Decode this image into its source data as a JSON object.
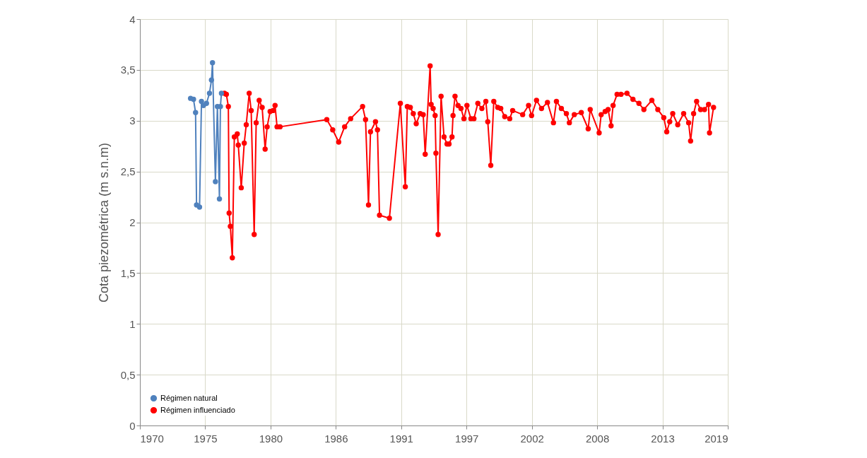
{
  "chart_data": {
    "type": "line",
    "ylabel": "Cota piezométrica (m s.n.m)",
    "xlim": [
      "1970-01-01",
      "2019-04-14"
    ],
    "xticks": [
      {
        "value": "1970-01-01",
        "label": "1970"
      },
      {
        "value": "1975-06-24",
        "label": "1975"
      },
      {
        "value": "1980-12-14",
        "label": "1980"
      },
      {
        "value": "1986-06-06",
        "label": "1986"
      },
      {
        "value": "1991-11-27",
        "label": "1991"
      },
      {
        "value": "1997-05-19",
        "label": "1997"
      },
      {
        "value": "2002-11-09",
        "label": "2002"
      },
      {
        "value": "2008-05-01",
        "label": "2008"
      },
      {
        "value": "2013-10-22",
        "label": "2013"
      },
      {
        "value": "2019-04-14",
        "label": "2019"
      }
    ],
    "ylim": [
      0,
      4
    ],
    "yticks": [
      {
        "value": 0,
        "label": "0"
      },
      {
        "value": 0.5,
        "label": "0,5"
      },
      {
        "value": 1,
        "label": "1"
      },
      {
        "value": 1.5,
        "label": "1,5"
      },
      {
        "value": 2,
        "label": "2"
      },
      {
        "value": 2.5,
        "label": "2,5"
      },
      {
        "value": 3,
        "label": "3"
      },
      {
        "value": 3.5,
        "label": "3,5"
      },
      {
        "value": 4,
        "label": "4"
      }
    ],
    "grid": true,
    "legend": "bottom left",
    "marker": "circle",
    "line_style": "solid",
    "series": [
      {
        "name": "Régimen natural",
        "color": "#4f81bd",
        "x": [
          "1974-04",
          "1974-07",
          "1974-09",
          "1974-10",
          "1975-01",
          "1975-03",
          "1975-05",
          "1975-08",
          "1975-11",
          "1976-01",
          "1976-02",
          "1976-05",
          "1976-07",
          "1976-09",
          "1976-10",
          "1976-11"
        ],
        "values": [
          3.22,
          3.21,
          3.08,
          2.17,
          2.15,
          3.19,
          3.15,
          3.17,
          3.27,
          3.4,
          3.57,
          2.4,
          3.14,
          2.23,
          3.14,
          3.27
        ]
      },
      {
        "name": "Régimen influenciado",
        "color": "#ff0000",
        "x": [
          "1977-02",
          "1977-04",
          "1977-06",
          "1977-06-25",
          "1977-08",
          "1977-10",
          "1977-12",
          "1978-03",
          "1978-04",
          "1978-07",
          "1978-10",
          "1978-12",
          "1979-03",
          "1979-05",
          "1979-08",
          "1979-10",
          "1980-01",
          "1980-04",
          "1980-07",
          "1980-09",
          "1980-12",
          "1981-03",
          "1981-05",
          "1981-07",
          "1981-10",
          "1985-09",
          "1986-03",
          "1986-09",
          "1987-03",
          "1987-09",
          "1988-09",
          "1988-12",
          "1989-03",
          "1989-05",
          "1989-10",
          "1989-12",
          "1990-02",
          "1990-12",
          "1991-11",
          "1992-04",
          "1992-06",
          "1992-09",
          "1992-12",
          "1993-03",
          "1993-07",
          "1993-10",
          "1993-12",
          "1994-05",
          "1994-06",
          "1994-08",
          "1994-10",
          "1994-10-25",
          "1995-01",
          "1995-04",
          "1995-07",
          "1995-10",
          "1995-12",
          "1996-03",
          "1996-04",
          "1996-06",
          "1996-09",
          "1996-12",
          "1997-03",
          "1997-06",
          "1997-10",
          "1998-01",
          "1998-05",
          "1998-09",
          "1999-01",
          "1999-03",
          "1999-06",
          "1999-09",
          "2000-01",
          "2000-04",
          "2000-08",
          "2001-01",
          "2001-04",
          "2002-02",
          "2002-08",
          "2002-11",
          "2003-04",
          "2003-09",
          "2004-03",
          "2004-09",
          "2004-12",
          "2005-05",
          "2005-10",
          "2006-01",
          "2006-06",
          "2007-01",
          "2007-08",
          "2007-10",
          "2008-07",
          "2008-09",
          "2009-01",
          "2009-04",
          "2009-07",
          "2009-09",
          "2010-01",
          "2010-05",
          "2010-11",
          "2011-05",
          "2011-11",
          "2012-04",
          "2012-12",
          "2013-06",
          "2013-12",
          "2014-03",
          "2014-06",
          "2014-09",
          "2015-02",
          "2015-08",
          "2016-01",
          "2016-03",
          "2016-06",
          "2016-09",
          "2017-01",
          "2017-05",
          "2017-09",
          "2017-10",
          "2018-02"
        ],
        "values": [
          3.27,
          3.26,
          3.14,
          2.09,
          1.96,
          1.65,
          2.84,
          2.87,
          2.76,
          2.34,
          2.78,
          2.96,
          3.27,
          3.1,
          1.88,
          2.98,
          3.2,
          3.13,
          2.72,
          2.94,
          3.09,
          3.1,
          3.15,
          2.94,
          2.94,
          3.01,
          2.91,
          2.79,
          2.94,
          3.02,
          3.14,
          3.01,
          2.17,
          2.89,
          2.99,
          2.91,
          2.07,
          2.04,
          3.17,
          2.35,
          3.14,
          3.13,
          3.07,
          2.97,
          3.07,
          3.06,
          2.67,
          3.54,
          3.16,
          3.12,
          3.05,
          2.68,
          1.88,
          3.24,
          2.84,
          2.77,
          2.77,
          2.84,
          3.05,
          3.24,
          3.15,
          3.12,
          3.02,
          3.15,
          3.02,
          3.02,
          3.17,
          3.12,
          3.19,
          2.99,
          2.56,
          3.19,
          3.13,
          3.12,
          3.04,
          3.02,
          3.1,
          3.06,
          3.15,
          3.05,
          3.2,
          3.12,
          3.18,
          2.98,
          3.19,
          3.12,
          3.07,
          2.98,
          3.06,
          3.08,
          2.92,
          3.11,
          2.88,
          3.06,
          3.09,
          3.11,
          2.95,
          3.15,
          3.26,
          3.26,
          3.27,
          3.21,
          3.17,
          3.11,
          3.2,
          3.11,
          3.03,
          2.89,
          2.99,
          3.07,
          2.96,
          3.07,
          2.98,
          2.8,
          3.07,
          3.19,
          3.11,
          3.11,
          3.16,
          2.88,
          3.13
        ]
      }
    ]
  }
}
